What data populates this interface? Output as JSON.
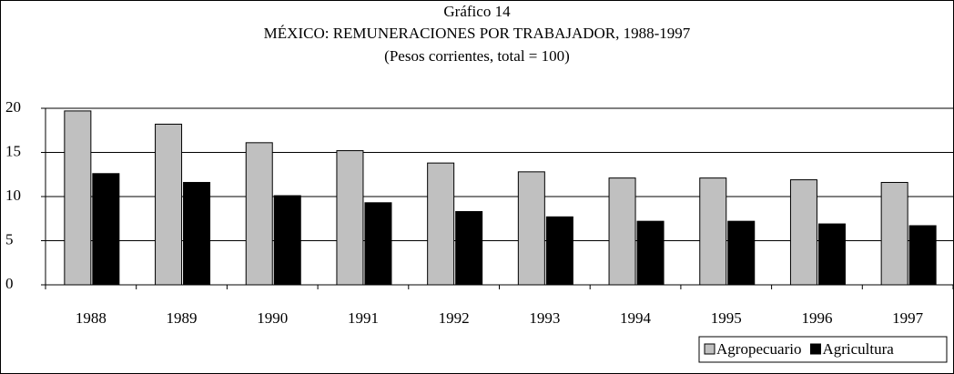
{
  "chart_data": {
    "type": "bar",
    "title": "Gráfico 14",
    "subtitle": "MÉXICO: REMUNERACIONES POR TRABAJADOR, 1988-1997",
    "note": "(Pesos corrientes, total = 100)",
    "categories": [
      "1988",
      "1989",
      "1990",
      "1991",
      "1992",
      "1993",
      "1994",
      "1995",
      "1996",
      "1997"
    ],
    "series": [
      {
        "name": "Agropecuario",
        "color": "#c0c0c0",
        "values": [
          19.7,
          18.2,
          16.1,
          15.2,
          13.8,
          12.8,
          12.1,
          12.1,
          11.9,
          11.6
        ]
      },
      {
        "name": "Agricultura",
        "color": "#000000",
        "values": [
          12.6,
          11.6,
          10.1,
          9.3,
          8.3,
          7.7,
          7.2,
          7.2,
          6.9,
          6.7
        ]
      }
    ],
    "ylim": [
      0,
      20
    ],
    "yticks": [
      0,
      5,
      10,
      15,
      20
    ],
    "grid": true,
    "legend": "bottom-right"
  }
}
